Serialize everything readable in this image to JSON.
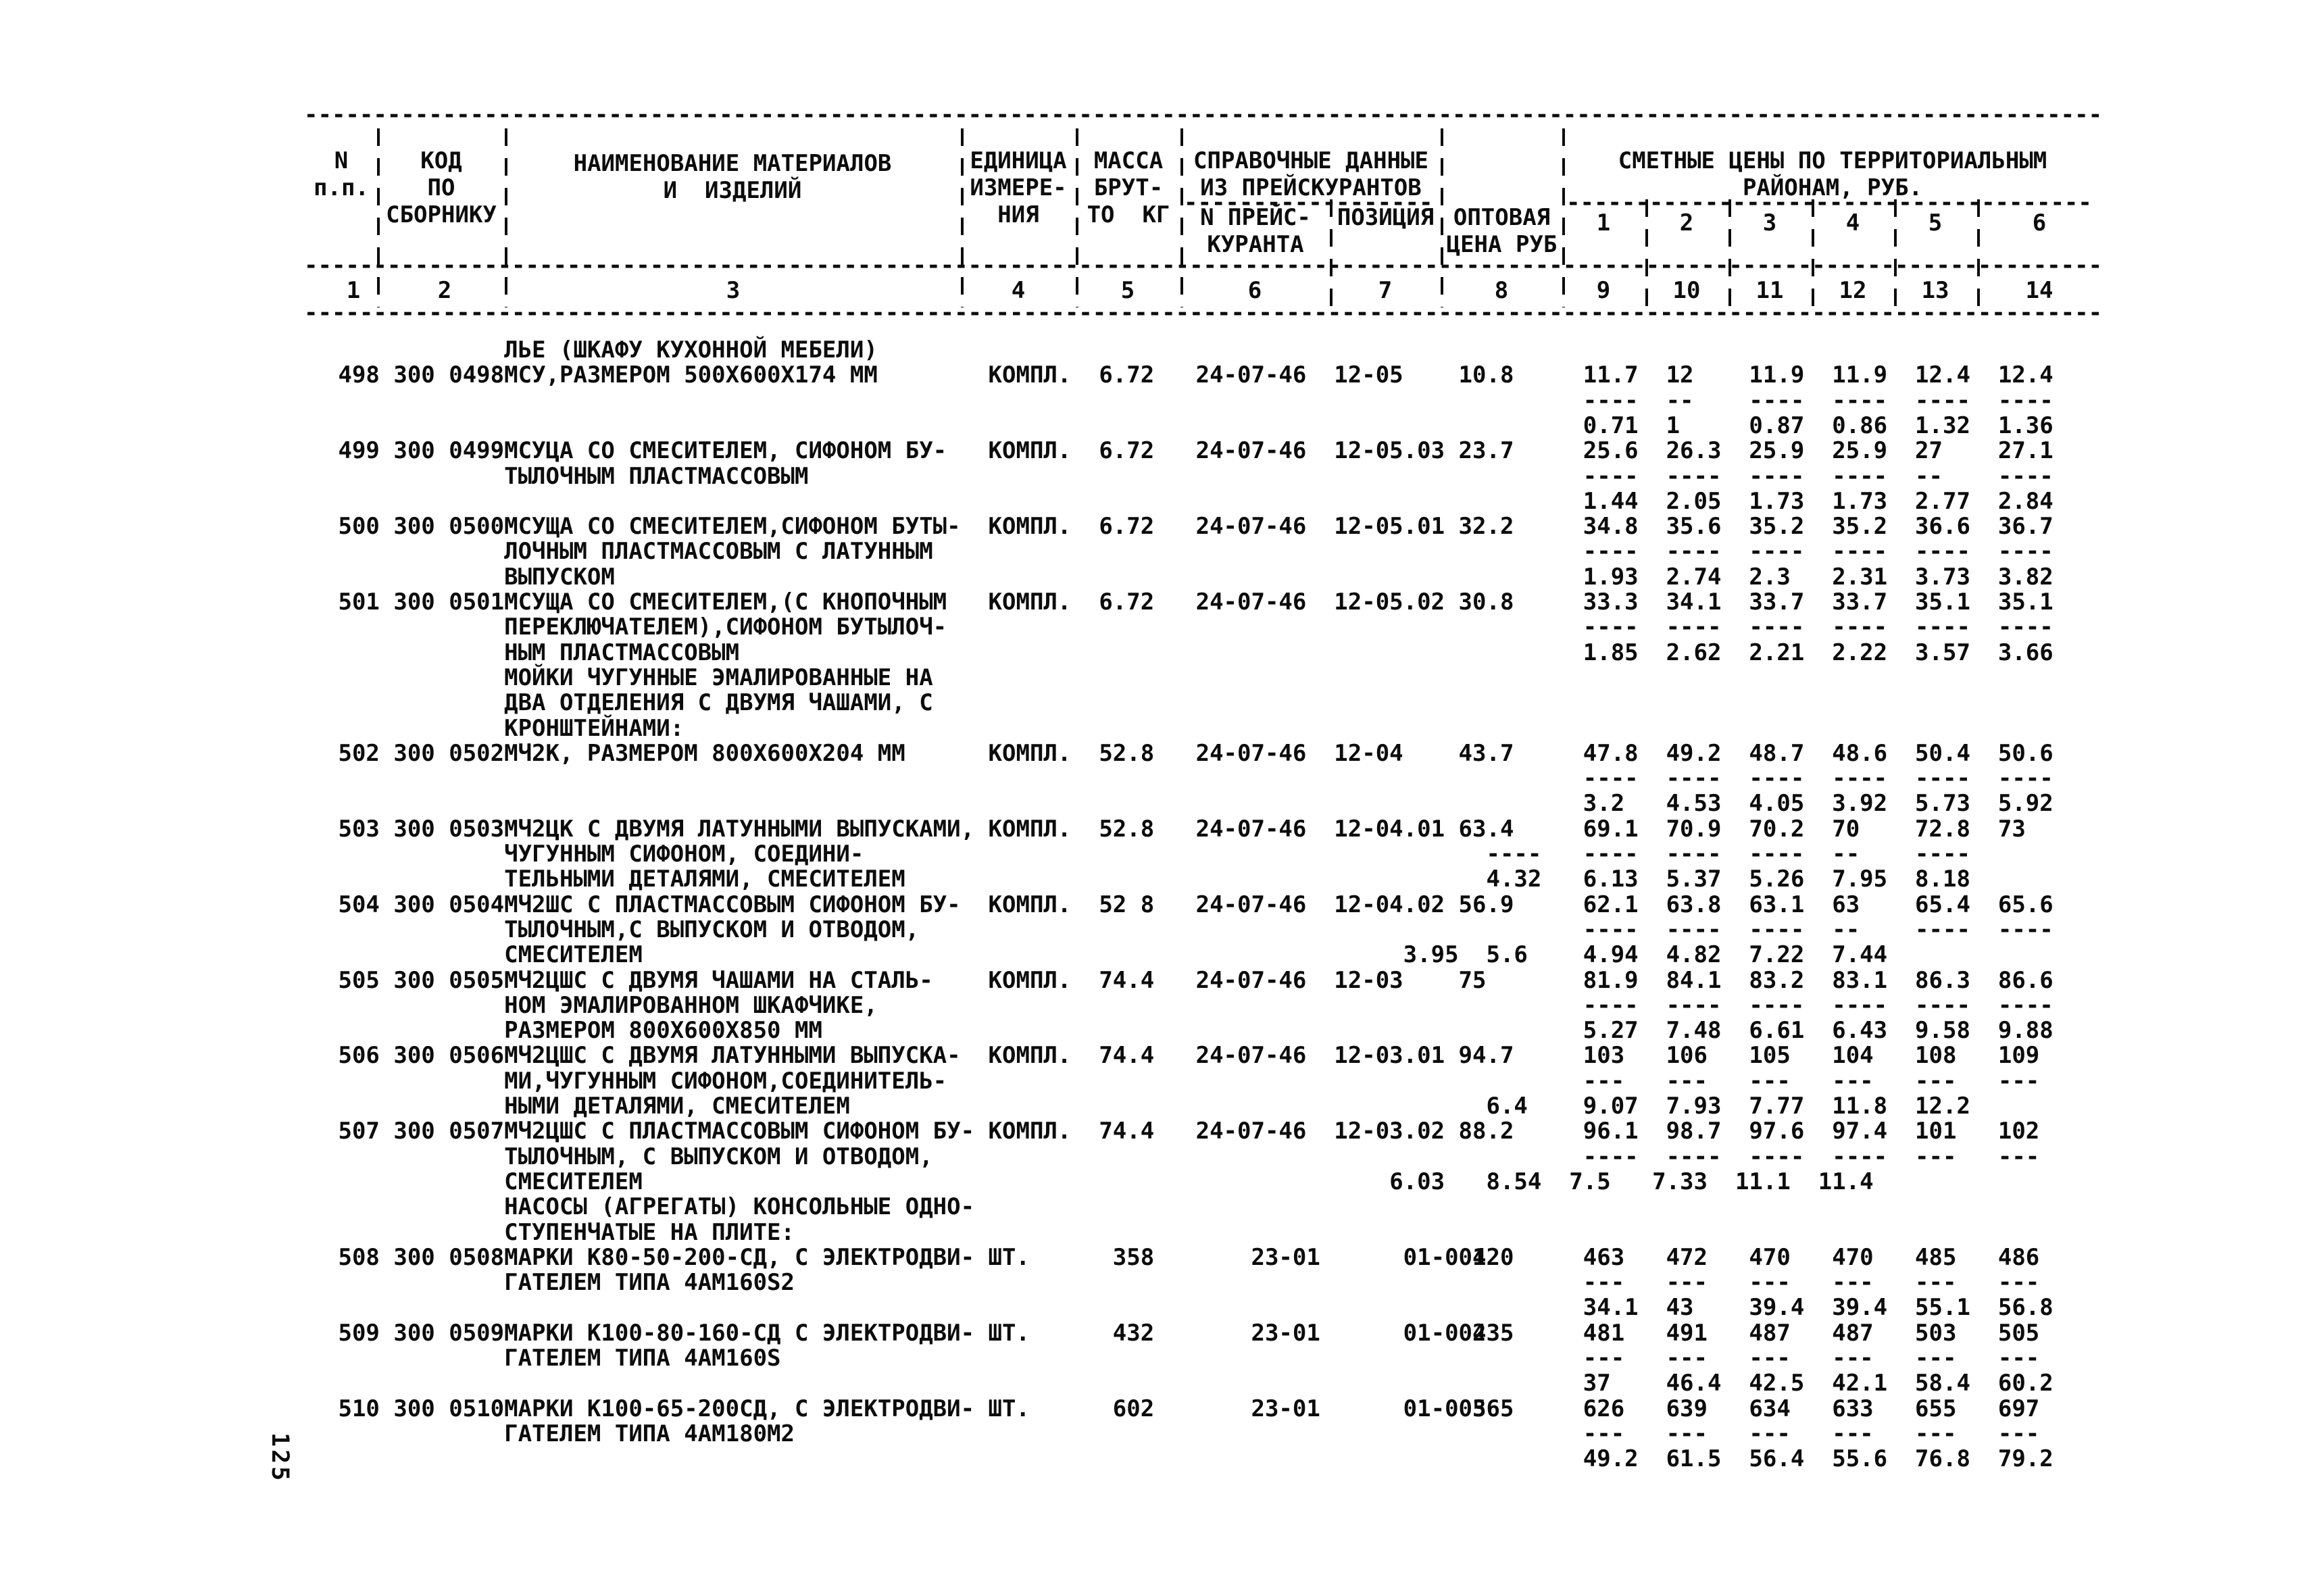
{
  "page": {
    "number": "125"
  },
  "header": {
    "cols": {
      "n": [
        "N",
        "п.п."
      ],
      "code": [
        "КОД",
        "ПО",
        "СБОРНИКУ"
      ],
      "name": [
        "НАИМЕНОВАНИЕ МАТЕРИАЛОВ",
        "И  ИЗДЕЛИЙ"
      ],
      "unit": [
        "ЕДИНИЦА",
        "ИЗМЕРЕ-",
        "НИЯ"
      ],
      "mass": [
        "МАССА",
        "БРУТ-",
        "ТО  КГ"
      ],
      "ref_group": [
        "СПРАВОЧНЫЕ ДАННЫЕ",
        "ИЗ ПРЕЙСКУРАНТОВ"
      ],
      "ref": [
        "N ПРЕЙС-",
        "КУРАНТА"
      ],
      "pos": [
        "ПОЗИЦИЯ"
      ],
      "opt": [
        "ОПТОВАЯ",
        "ЦЕНА РУБ"
      ],
      "zones_group": [
        "СМЕТНЫЕ ЦЕНЫ ПО ТЕРРИТОРИАЛЬНЫМ",
        "РАЙОНАМ, РУБ."
      ],
      "zones": [
        "1",
        "2",
        "3",
        "4",
        "5",
        "6"
      ]
    },
    "index_row": [
      "1",
      "2",
      "3",
      "4",
      "5",
      "6",
      "7",
      "8",
      "9",
      "10",
      "11",
      "12",
      "13",
      "14"
    ]
  },
  "table": {
    "rows": [
      {
        "type": "group",
        "lines": [
          "ЛЬЕ (ШКАФУ КУХОННОЙ МЕБЕЛИ)"
        ]
      },
      {
        "type": "item",
        "n": "498",
        "code": "300 0498",
        "name": [
          "МСУ,РАЗМЕРОМ 500X600X174 ММ"
        ],
        "unit": "КОМПЛ.",
        "mass": "6.72",
        "ref": "24-07-46",
        "pos": "12-05",
        "opt": "10.8",
        "zones": [
          "11.7",
          "12",
          "11.9",
          "11.9",
          "12.4",
          "12.4"
        ],
        "sub": [
          "0.71",
          "1",
          "0.87",
          "0.86",
          "1.32",
          "1.36"
        ]
      },
      {
        "type": "item",
        "n": "499",
        "code": "300 0499",
        "name": [
          "МСУЦА СО СМЕСИТЕЛЕМ, СИФОНОМ БУ-",
          "ТЫЛОЧНЫМ ПЛАСТМАССОВЫМ"
        ],
        "unit": "КОМПЛ.",
        "mass": "6.72",
        "ref": "24-07-46",
        "pos": "12-05.03",
        "opt": "23.7",
        "zones": [
          "25.6",
          "26.3",
          "25.9",
          "25.9",
          "27",
          "27.1"
        ],
        "sub": [
          "1.44",
          "2.05",
          "1.73",
          "1.73",
          "2.77",
          "2.84"
        ]
      },
      {
        "type": "item",
        "n": "500",
        "code": "300 0500",
        "name": [
          "МСУЩА СО СМЕСИТЕЛЕМ,СИФОНОМ БУТЫ-",
          "ЛОЧНЫМ ПЛАСТМАССОВЫМ С ЛАТУННЫМ",
          "ВЫПУСКОМ"
        ],
        "unit": "КОМПЛ.",
        "mass": "6.72",
        "ref": "24-07-46",
        "pos": "12-05.01",
        "opt": "32.2",
        "zones": [
          "34.8",
          "35.6",
          "35.2",
          "35.2",
          "36.6",
          "36.7"
        ],
        "sub": [
          "1.93",
          "2.74",
          "2.3",
          "2.31",
          "3.73",
          "3.82"
        ]
      },
      {
        "type": "item",
        "n": "501",
        "code": "300 0501",
        "name": [
          "МСУЩА СО СМЕСИТЕЛЕМ,(С КНОПОЧНЫМ",
          "ПЕРЕКЛЮЧАТЕЛЕМ),СИФОНОМ БУТЫЛОЧ-",
          "НЫМ ПЛАСТМАССОВЫМ"
        ],
        "unit": "КОМПЛ.",
        "mass": "6.72",
        "ref": "24-07-46",
        "pos": "12-05.02",
        "opt": "30.8",
        "zones": [
          "33.3",
          "34.1",
          "33.7",
          "33.7",
          "35.1",
          "35.1"
        ],
        "sub": [
          "1.85",
          "2.62",
          "2.21",
          "2.22",
          "3.57",
          "3.66"
        ]
      },
      {
        "type": "group",
        "lines": [
          "МОЙКИ ЧУГУННЫЕ ЭМАЛИРОВАННЫЕ НА",
          "ДВА ОТДЕЛЕНИЯ С ДВУМЯ ЧАШАМИ, С",
          "КРОНШТЕЙНАМИ:"
        ]
      },
      {
        "type": "item",
        "n": "502",
        "code": "300 0502",
        "name": [
          "МЧ2К, РАЗМЕРОМ 800X600X204 ММ"
        ],
        "unit": "КОМПЛ.",
        "mass": "52.8",
        "ref": "24-07-46",
        "pos": "12-04",
        "opt": "43.7",
        "zones": [
          "47.8",
          "49.2",
          "48.7",
          "48.6",
          "50.4",
          "50.6"
        ],
        "sub": [
          "3.2",
          "4.53",
          "4.05",
          "3.92",
          "5.73",
          "5.92"
        ]
      },
      {
        "type": "item",
        "n": "503",
        "code": "300 0503",
        "name": [
          "МЧ2ЦК С ДВУМЯ ЛАТУННЫМИ ВЫПУСКАМИ,",
          "ЧУГУННЫМ СИФОНОМ, СОЕДИНИ-",
          "ТЕЛЬНЫМИ ДЕТАЛЯМИ, СМЕСИТЕЛЕМ"
        ],
        "unit": "КОМПЛ.",
        "mass": "52.8",
        "ref": "24-07-46",
        "pos": "12-04.01",
        "opt": "63.4",
        "zones": [
          "69.1",
          "70.9",
          "70.2",
          "70",
          "72.8",
          "73"
        ],
        "sub": [
          "4.32",
          "6.13",
          "5.37",
          "5.26",
          "7.95",
          "8.18"
        ],
        "sub_cols": [
          84,
          91,
          97,
          103,
          109,
          115
        ],
        "dash_cols": [
          84,
          91,
          97,
          103,
          109,
          115
        ]
      },
      {
        "type": "item",
        "n": "504",
        "code": "300 0504",
        "name": [
          "МЧ2ШС С ПЛАСТМАССОВЫМ СИФОНОМ БУ-",
          "ТЫЛОЧНЫМ,С ВЫПУСКОМ И ОТВОДОМ,",
          "СМЕСИТЕЛЕМ"
        ],
        "unit": "КОМПЛ.",
        "mass": "52 8",
        "ref": "24-07-46",
        "pos": "12-04.02",
        "opt": "56.9",
        "zones": [
          "62.1",
          "63.8",
          "63.1",
          "63",
          "65.4",
          "65.6"
        ],
        "sub": [
          "3.95",
          "5.6",
          "4.94",
          "4.82",
          "7.22",
          "7.44"
        ],
        "sub_cols": [
          78,
          84,
          91,
          97,
          103,
          109
        ]
      },
      {
        "type": "item",
        "n": "505",
        "code": "300 0505",
        "name": [
          "МЧ2ЦШС С ДВУМЯ ЧАШАМИ НА СТАЛЬ-",
          "НОМ ЭМАЛИРОВАННОМ ШКАФЧИКЕ,",
          "РАЗМЕРОМ 800X600X850 ММ"
        ],
        "unit": "КОМПЛ.",
        "mass": "74.4",
        "ref": "24-07-46",
        "pos": "12-03",
        "opt": "75",
        "zones": [
          "81.9",
          "84.1",
          "83.2",
          "83.1",
          "86.3",
          "86.6"
        ],
        "sub": [
          "5.27",
          "7.48",
          "6.61",
          "6.43",
          "9.58",
          "9.88"
        ]
      },
      {
        "type": "item",
        "n": "506",
        "code": "300 0506",
        "name": [
          "МЧ2ЦШС С ДВУМЯ ЛАТУННЫМИ ВЫПУСКА-",
          "МИ,ЧУГУННЫМ СИФОНОМ,СОЕДИНИТЕЛЬ-",
          "НЫМИ ДЕТАЛЯМИ, СМЕСИТЕЛЕМ"
        ],
        "unit": "КОМПЛ.",
        "mass": "74.4",
        "ref": "24-07-46",
        "pos": "12-03.01",
        "opt": "94.7",
        "zones": [
          "103",
          "106",
          "105",
          "104",
          "108",
          "109"
        ],
        "sub": [
          "6.4",
          "9.07",
          "7.93",
          "7.77",
          "11.8",
          "12.2"
        ],
        "sub_cols": [
          84,
          91,
          97,
          103,
          109,
          115
        ]
      },
      {
        "type": "item",
        "n": "507",
        "code": "300 0507",
        "name": [
          "МЧ2ЦШС С ПЛАСТМАССОВЫМ СИФОНОМ БУ-",
          "ТЫЛОЧНЫМ, С ВЫПУСКОМ И ОТВОДОМ,",
          "СМЕСИТЕЛЕМ"
        ],
        "unit": "КОМПЛ.",
        "mass": "74.4",
        "ref": "24-07-46",
        "pos": "12-03.02",
        "opt": "88.2",
        "zones": [
          "96.1",
          "98.7",
          "97.6",
          "97.4",
          "101",
          "102"
        ],
        "sub": [
          "6.03",
          "8.54",
          "7.5",
          "7.33",
          "11.1",
          "11.4"
        ],
        "sub_cols": [
          77,
          84,
          90,
          96,
          102,
          108
        ]
      },
      {
        "type": "group",
        "lines": [
          "НАСОСЫ (АГРЕГАТЫ) КОНСОЛЬНЫЕ ОДНО-",
          "СТУПЕНЧАТЫЕ НА ПЛИТЕ:"
        ]
      },
      {
        "type": "item",
        "n": "508",
        "code": "300 0508",
        "name": [
          "МАРКИ К80-50-200-СД, С ЭЛЕКТРОДВИ-",
          "ГАТЕЛЕМ ТИПА 4АМ160S2"
        ],
        "unit": "ШТ.",
        "mass": "358",
        "ref": "23-01",
        "pos": "01-001",
        "opt": "420",
        "zones": [
          "463",
          "472",
          "470",
          "470",
          "485",
          "486"
        ],
        "sub": [
          "34.1",
          "43",
          "39.4",
          "39.4",
          "55.1",
          "56.8"
        ]
      },
      {
        "type": "item",
        "n": "509",
        "code": "300 0509",
        "name": [
          "МАРКИ К100-80-160-СД С ЭЛЕКТРОДВИ-",
          "ГАТЕЛЕМ ТИПА 4АМ160S"
        ],
        "unit": "ШТ.",
        "mass": "432",
        "ref": "23-01",
        "pos": "01-002",
        "opt": "435",
        "zones": [
          "481",
          "491",
          "487",
          "487",
          "503",
          "505"
        ],
        "sub": [
          "37",
          "46.4",
          "42.5",
          "42.1",
          "58.4",
          "60.2"
        ]
      },
      {
        "type": "item",
        "n": "510",
        "code": "300 0510",
        "name": [
          "МАРКИ К100-65-200СД, С ЭЛЕКТРОДВИ-",
          "ГАТЕЛЕМ ТИПА 4АМ180М2"
        ],
        "unit": "ШТ.",
        "mass": "602",
        "ref": "23-01",
        "pos": "01-003",
        "opt": "565",
        "zones": [
          "626",
          "639",
          "634",
          "633",
          "655",
          "697"
        ],
        "sub": [
          "49.2",
          "61.5",
          "56.4",
          "55.6",
          "76.8",
          "79.2"
        ]
      }
    ]
  }
}
